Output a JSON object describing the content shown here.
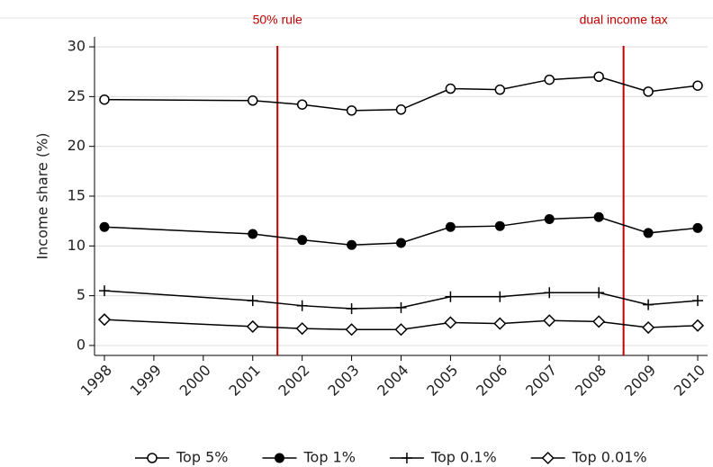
{
  "chart_data": {
    "type": "line",
    "y_label": "Income share (%)",
    "x": [
      1998,
      2001,
      2002,
      2003,
      2004,
      2005,
      2006,
      2007,
      2008,
      2009,
      2010
    ],
    "series": [
      {
        "name": "Top 5%",
        "color": "#000000",
        "marker": "circle-open",
        "values": [
          24.7,
          24.6,
          24.2,
          23.6,
          23.7,
          25.8,
          25.7,
          26.7,
          27.0,
          25.5,
          26.1
        ]
      },
      {
        "name": "Top 1%",
        "color": "#000000",
        "marker": "circle-filled",
        "values": [
          11.9,
          11.2,
          10.6,
          10.1,
          10.3,
          11.9,
          12.0,
          12.7,
          12.9,
          11.3,
          11.8
        ]
      },
      {
        "name": "Top 0.1%",
        "color": "#000000",
        "marker": "plus",
        "values": [
          5.5,
          4.5,
          4.0,
          3.7,
          3.8,
          4.9,
          4.9,
          5.3,
          5.3,
          4.1,
          4.5
        ]
      },
      {
        "name": "Top 0.01%",
        "color": "#000000",
        "marker": "diamond-open",
        "values": [
          2.6,
          1.9,
          1.7,
          1.6,
          1.6,
          2.3,
          2.2,
          2.5,
          2.4,
          1.8,
          2.0
        ]
      }
    ],
    "annotations": [
      {
        "text": "50% rule",
        "x": 2001.5,
        "color": "#c00000"
      },
      {
        "text": "dual income tax",
        "x": 2008.5,
        "color": "#c00000"
      }
    ],
    "xlim": [
      1997.8,
      2010.2
    ],
    "xticks": [
      1998,
      1999,
      2000,
      2001,
      2002,
      2003,
      2004,
      2005,
      2006,
      2007,
      2008,
      2009,
      2010
    ],
    "ylim": [
      -1,
      31
    ],
    "yticks": [
      0,
      5,
      10,
      15,
      20,
      25,
      30
    ],
    "grid": true
  }
}
